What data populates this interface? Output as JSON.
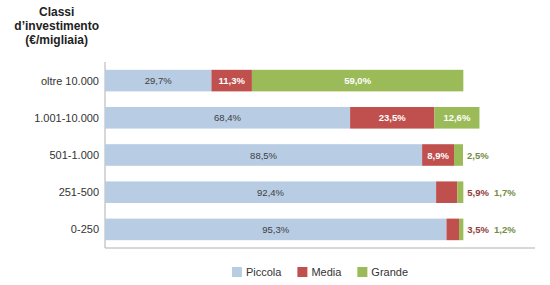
{
  "chart_data": {
    "type": "bar",
    "orientation": "horizontal",
    "stacked": true,
    "data_labels": true,
    "tick_labels": "y",
    "title": "Classi\nd’investimento\n(€/migliaia)",
    "categories": [
      "oltre 10.000",
      "1.001-10.000",
      "501-1.000",
      "251-500",
      "0-250"
    ],
    "xlim": [
      0,
      120
    ],
    "legend": "bottom",
    "series": [
      {
        "name": "Piccola",
        "color": "#b8cce4",
        "values": [
          29.7,
          68.4,
          88.5,
          92.4,
          95.3
        ],
        "value_labels": [
          "29,7%",
          "68,4%",
          "88,5%",
          "92,4%",
          "95,3%"
        ]
      },
      {
        "name": "Media",
        "color": "#c0504d",
        "values": [
          11.3,
          23.5,
          8.9,
          5.9,
          3.5
        ],
        "value_labels": [
          "11,3%",
          "23,5%",
          "8,9%",
          "5,9%",
          "3,5%"
        ]
      },
      {
        "name": "Grande",
        "color": "#9bbb59",
        "values": [
          59.0,
          12.6,
          2.5,
          1.7,
          1.2
        ],
        "value_labels": [
          "59,0%",
          "12,6%",
          "2,5%",
          "1,7%",
          "1,2%"
        ]
      }
    ]
  }
}
